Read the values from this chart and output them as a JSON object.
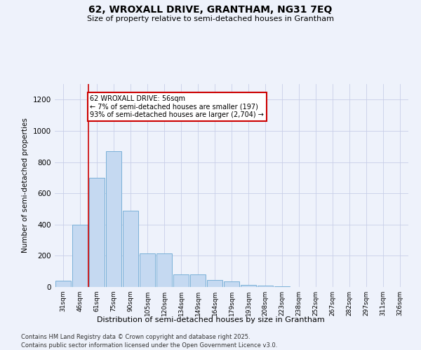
{
  "title1": "62, WROXALL DRIVE, GRANTHAM, NG31 7EQ",
  "title2": "Size of property relative to semi-detached houses in Grantham",
  "xlabel": "Distribution of semi-detached houses by size in Grantham",
  "ylabel": "Number of semi-detached properties",
  "bin_labels": [
    "31sqm",
    "46sqm",
    "61sqm",
    "75sqm",
    "90sqm",
    "105sqm",
    "120sqm",
    "134sqm",
    "149sqm",
    "164sqm",
    "179sqm",
    "193sqm",
    "208sqm",
    "223sqm",
    "238sqm",
    "252sqm",
    "267sqm",
    "282sqm",
    "297sqm",
    "311sqm",
    "326sqm"
  ],
  "bar_values": [
    40,
    400,
    700,
    870,
    490,
    215,
    215,
    80,
    80,
    45,
    35,
    15,
    8,
    4,
    2,
    2,
    1,
    1,
    1,
    0,
    1
  ],
  "bar_color": "#c5d9f1",
  "bar_edge_color": "#7ab0d8",
  "red_line_x": 1.5,
  "annotation_title": "62 WROXALL DRIVE: 56sqm",
  "annotation_line1": "← 7% of semi-detached houses are smaller (197)",
  "annotation_line2": "93% of semi-detached houses are larger (2,704) →",
  "annotation_box_color": "#ffffff",
  "annotation_box_edge": "#cc0000",
  "ylim": [
    0,
    1300
  ],
  "yticks": [
    0,
    200,
    400,
    600,
    800,
    1000,
    1200
  ],
  "footnote1": "Contains HM Land Registry data © Crown copyright and database right 2025.",
  "footnote2": "Contains public sector information licensed under the Open Government Licence v3.0.",
  "background_color": "#eef2fb",
  "grid_color": "#c8cfe8"
}
